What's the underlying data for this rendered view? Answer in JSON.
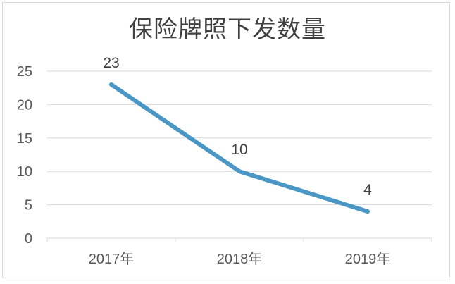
{
  "chart_data": {
    "type": "line",
    "title": "保险牌照下发数量",
    "categories": [
      "2017年",
      "2018年",
      "2019年"
    ],
    "values": [
      23,
      10,
      4
    ],
    "data_labels": [
      "23",
      "10",
      "4"
    ],
    "ylim": [
      0,
      25
    ],
    "yticks": [
      0,
      5,
      10,
      15,
      20,
      25
    ],
    "ytick_labels": [
      "0",
      "5",
      "10",
      "15",
      "20",
      "25"
    ],
    "grid": true,
    "legend": "none",
    "line_color": "#4a97c5",
    "grid_color": "#d9d9d9",
    "text_color": "#595959"
  }
}
